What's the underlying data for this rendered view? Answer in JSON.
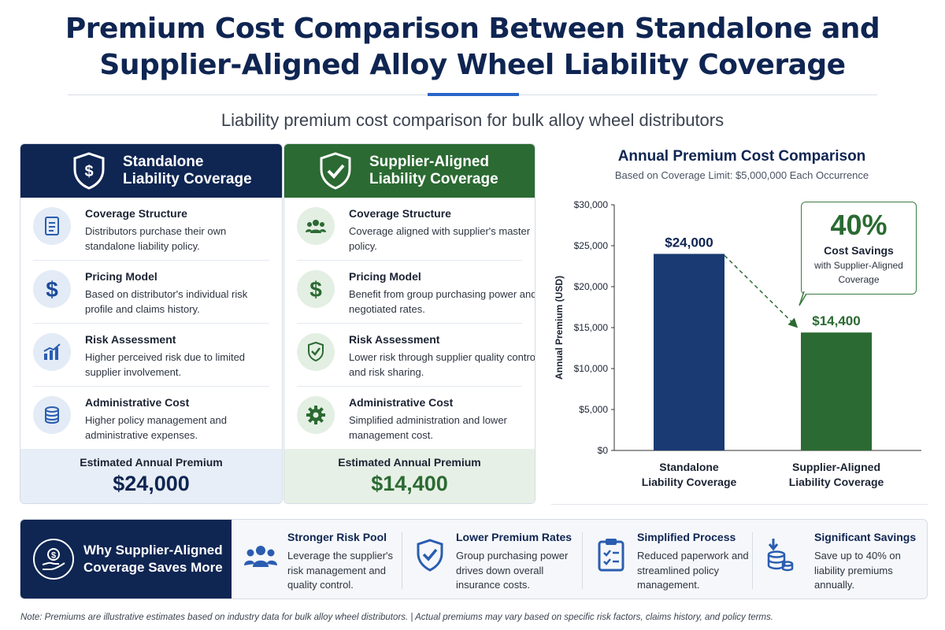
{
  "title": {
    "line1": "Premium Cost Comparison Between Standalone and",
    "line2": "Supplier-Aligned Alloy Wheel Liability Coverage"
  },
  "subtitle": "Liability premium cost comparison for bulk alloy wheel distributors",
  "colors": {
    "navy": "#0f2552",
    "green": "#2b6a32",
    "accent_blue": "#2a66c8"
  },
  "standalone": {
    "header_line1": "Standalone",
    "header_line2": "Liability Coverage",
    "icon": "shield-dollar-icon",
    "items": [
      {
        "icon": "document-icon",
        "title": "Coverage Structure",
        "desc": "Distributors purchase their own standalone liability policy."
      },
      {
        "icon": "dollar-icon",
        "title": "Pricing Model",
        "desc": "Based on distributor's individual risk profile and claims history."
      },
      {
        "icon": "bar-chart-icon",
        "title": "Risk Assessment",
        "desc": "Higher perceived risk due to limited supplier involvement."
      },
      {
        "icon": "coin-stack-icon",
        "title": "Administrative Cost",
        "desc": "Higher policy management and administrative expenses."
      }
    ],
    "premium_label": "Estimated Annual Premium",
    "premium_value": "$24,000"
  },
  "aligned": {
    "header_line1": "Supplier-Aligned",
    "header_line2": "Liability Coverage",
    "icon": "shield-check-icon",
    "items": [
      {
        "icon": "group-icon",
        "title": "Coverage Structure",
        "desc": "Coverage aligned with supplier's master policy."
      },
      {
        "icon": "dollar-icon",
        "title": "Pricing Model",
        "desc": "Benefit from group purchasing power and negotiated rates."
      },
      {
        "icon": "shield-check-icon",
        "title": "Risk Assessment",
        "desc": "Lower risk through supplier quality control and risk sharing."
      },
      {
        "icon": "gear-icon",
        "title": "Administrative Cost",
        "desc": "Simplified administration and lower management cost."
      }
    ],
    "premium_label": "Estimated Annual Premium",
    "premium_value": "$14,400"
  },
  "chart_data": {
    "type": "bar",
    "title": "Annual Premium Cost Comparison",
    "subtitle": "Based on Coverage Limit: $5,000,000 Each Occurrence",
    "ylabel": "Annual Premium (USD)",
    "xlabel": "",
    "categories": [
      [
        "Standalone",
        "Liability Coverage"
      ],
      [
        "Supplier-Aligned",
        "Liability Coverage"
      ]
    ],
    "values": [
      24000,
      14400
    ],
    "data_labels": [
      "$24,000",
      "$14,400"
    ],
    "bar_colors": [
      "#193a72",
      "#2b6a32"
    ],
    "ylim": [
      0,
      30000
    ],
    "yticks": [
      0,
      5000,
      10000,
      15000,
      20000,
      25000,
      30000
    ],
    "ytick_labels": [
      "$0",
      "$5,000",
      "$10,000",
      "$15,000",
      "$20,000",
      "$25,000",
      "$30,000"
    ],
    "grid": false,
    "annotation": {
      "value": "40%",
      "label": "Cost Savings",
      "desc_line1": "with Supplier-Aligned",
      "desc_line2": "Coverage"
    }
  },
  "why": {
    "line1": "Why Supplier-Aligned",
    "line2": "Coverage Saves More",
    "icon": "hand-coin-icon"
  },
  "benefits": [
    {
      "icon": "group-icon",
      "title": "Stronger Risk Pool",
      "desc": "Leverage the supplier's risk management and quality control."
    },
    {
      "icon": "shield-check-icon",
      "title": "Lower Premium Rates",
      "desc": "Group purchasing power drives down overall insurance costs."
    },
    {
      "icon": "clipboard-check-icon",
      "title": "Simplified Process",
      "desc": "Reduced paperwork and streamlined policy management."
    },
    {
      "icon": "coins-down-icon",
      "title": "Significant Savings",
      "desc": "Save up to 40% on liability premiums annually."
    }
  ],
  "note": "Note: Premiums are illustrative estimates based on industry data for bulk alloy wheel distributors.  |  Actual premiums may vary based on specific risk factors, claims history, and policy terms."
}
